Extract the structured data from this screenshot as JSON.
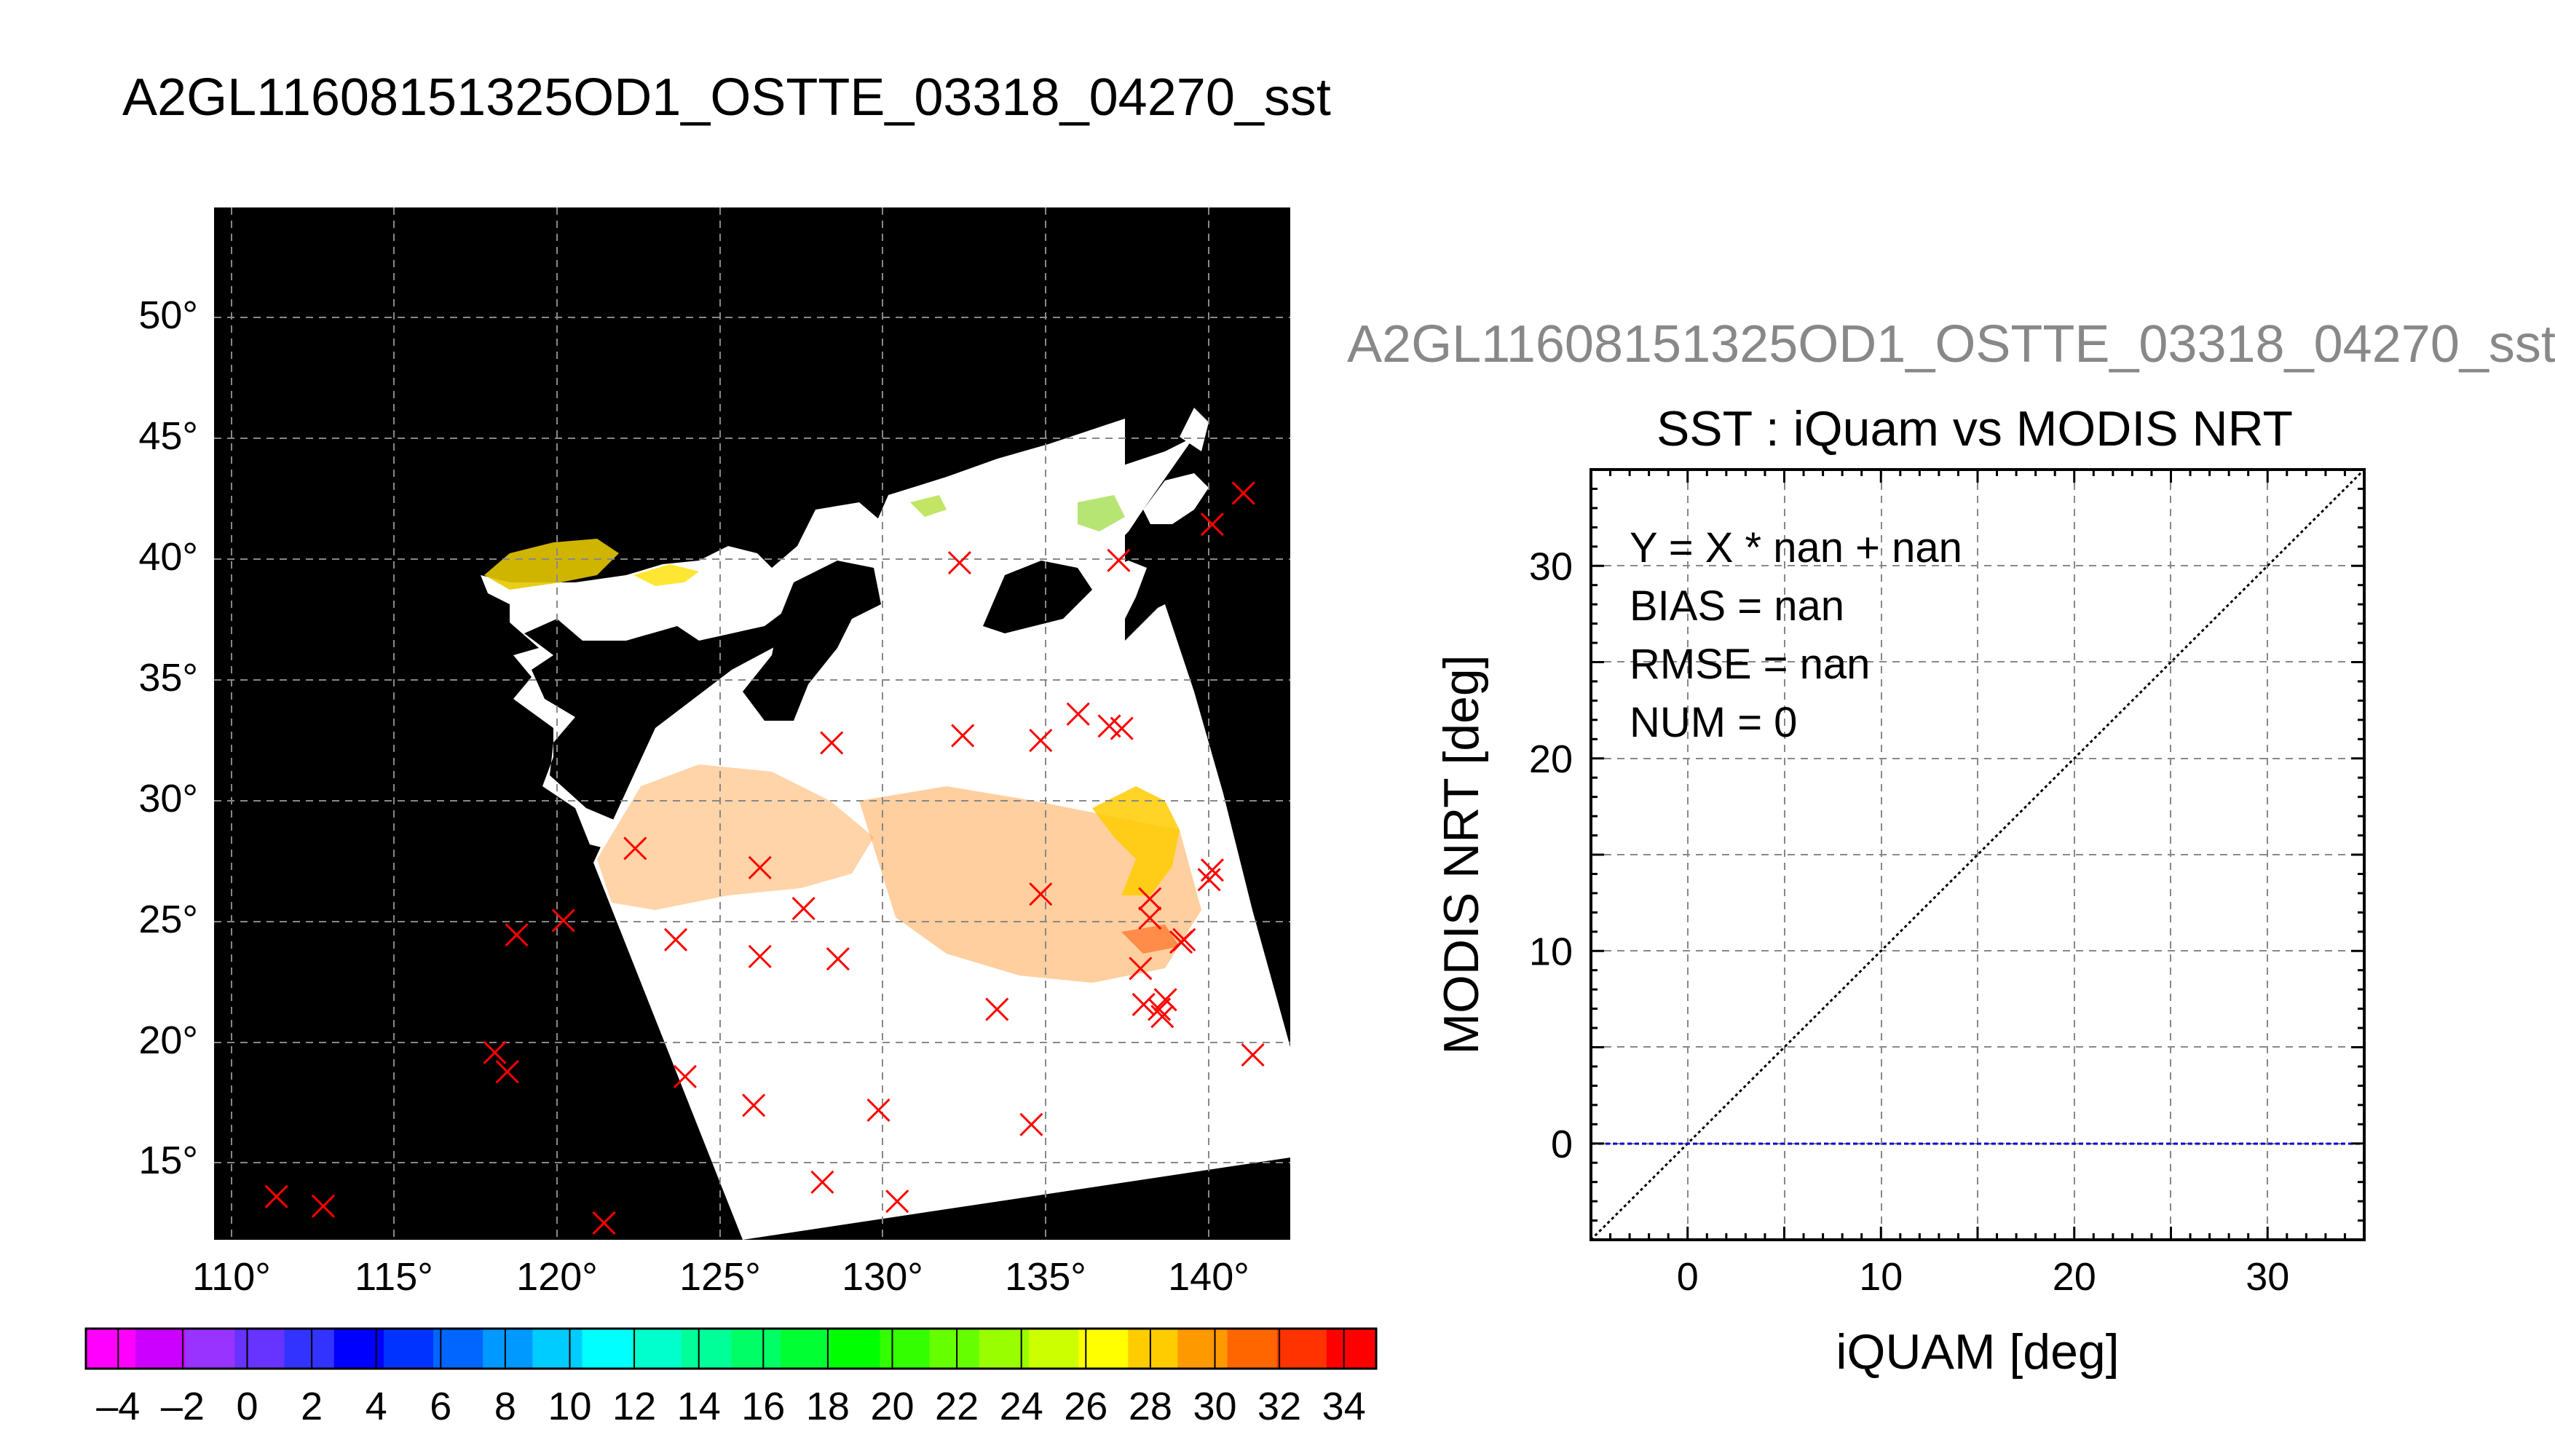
{
  "figure": {
    "title": "A2GL11608151325OD1_OSTTE_03318_04270_sst",
    "right_header": "A2GL11608151325OD1_OSTTE_03318_04270_sst"
  },
  "chart_data": [
    {
      "type": "map",
      "description_type": "satellite SST swath map with in-situ (iQuam) locations",
      "x_ticks": [
        "110°",
        "115°",
        "120°",
        "125°",
        "130°",
        "135°",
        "140°"
      ],
      "y_ticks": [
        "15°",
        "20°",
        "25°",
        "30°",
        "35°",
        "40°",
        "45°",
        "50°"
      ],
      "lon_range": [
        108.5,
        143
      ],
      "lat_range": [
        11.5,
        54.5
      ],
      "grid": true,
      "marker_color": "#ff0000",
      "marker_points": [
        [
          110.5,
          13.3
        ],
        [
          112,
          12.9
        ],
        [
          121,
          12.2
        ],
        [
          117.5,
          19.3
        ],
        [
          117.9,
          18.5
        ],
        [
          118.2,
          24.2
        ],
        [
          119.7,
          24.8
        ],
        [
          122,
          27.8
        ],
        [
          123.3,
          24
        ],
        [
          123.6,
          18.3
        ],
        [
          125.8,
          17.1
        ],
        [
          126,
          23.3
        ],
        [
          126,
          27
        ],
        [
          127.4,
          25.3
        ],
        [
          128,
          13.9
        ],
        [
          128.3,
          32.2
        ],
        [
          128.5,
          23.2
        ],
        [
          129.8,
          16.9
        ],
        [
          130.4,
          13.1
        ],
        [
          132.4,
          39.7
        ],
        [
          132.5,
          32.5
        ],
        [
          133.6,
          21.1
        ],
        [
          134.7,
          16.3
        ],
        [
          135,
          25.9
        ],
        [
          135,
          32.3
        ],
        [
          136.2,
          33.4
        ],
        [
          137.2,
          32.9
        ],
        [
          137.5,
          39.8
        ],
        [
          137.6,
          32.8
        ],
        [
          138.2,
          22.8
        ],
        [
          138.3,
          21.3
        ],
        [
          138.5,
          25.7
        ],
        [
          138.5,
          24.9
        ],
        [
          138.8,
          21.1
        ],
        [
          138.9,
          20.8
        ],
        [
          139,
          21.5
        ],
        [
          139.5,
          23.9
        ],
        [
          139.6,
          24
        ],
        [
          140.4,
          26.5
        ],
        [
          140.5,
          26.9
        ],
        [
          140.5,
          41.3
        ],
        [
          141.5,
          42.6
        ],
        [
          141.8,
          19.2
        ]
      ],
      "colorbar": {
        "ticks": [
          "–4",
          "–2",
          "0",
          "2",
          "4",
          "6",
          "8",
          "10",
          "12",
          "14",
          "16",
          "18",
          "20",
          "22",
          "24",
          "26",
          "28",
          "30",
          "32",
          "34"
        ],
        "range": [
          -5,
          35
        ],
        "colors": [
          "#ff00ff",
          "#cc00ff",
          "#9933ff",
          "#6633ff",
          "#3333ff",
          "#0000ff",
          "#0033ff",
          "#0066ff",
          "#0099ff",
          "#00ccff",
          "#00ffff",
          "#00ffcc",
          "#00ff99",
          "#00ff66",
          "#00ff33",
          "#00ff00",
          "#33ff00",
          "#66ff00",
          "#99ff00",
          "#ccff00",
          "#ffff00",
          "#ffcc00",
          "#ff9900",
          "#ff6600",
          "#ff3300",
          "#ff0000"
        ]
      }
    },
    {
      "type": "scatter",
      "title": "SST : iQuam vs MODIS NRT",
      "xlabel": "iQUAM [deg]",
      "ylabel": "MODIS NRT [deg]",
      "xlim": [
        -5,
        35
      ],
      "ylim": [
        -5,
        35
      ],
      "x_ticks": [
        0,
        10,
        20,
        30
      ],
      "y_ticks": [
        0,
        10,
        20,
        30
      ],
      "grid": true,
      "points": [],
      "lines": [
        {
          "kind": "identity",
          "from": [
            -5,
            -5
          ],
          "to": [
            35,
            35
          ],
          "color": "#000000"
        },
        {
          "kind": "fit",
          "y": 0,
          "color": "#0000cc"
        }
      ],
      "stats": [
        "Y = X * nan + nan",
        "BIAS = nan",
        "RMSE = nan",
        "NUM = 0"
      ]
    }
  ]
}
